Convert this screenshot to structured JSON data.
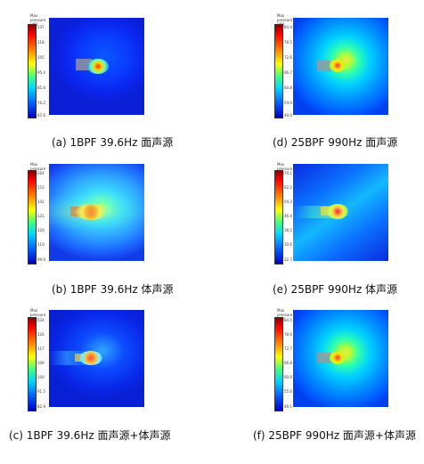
{
  "colorbar_title": "Max\npressure\n(dB)",
  "panels": {
    "a": {
      "caption": "(a) 1BPF 39.6Hz 面声源",
      "ticks": [
        "137",
        "118",
        "105",
        "95.4",
        "85.8",
        "76.2",
        "67.6"
      ]
    },
    "b": {
      "caption": "(b) 1BPF 39.6Hz 体声源",
      "ticks": [
        "164",
        "153",
        "142",
        "131",
        "120",
        "110",
        "99.0"
      ]
    },
    "c": {
      "caption": "(c) 1BPF 39.6Hz 面声源+体声源",
      "ticks": [
        "134",
        "126",
        "117",
        "109",
        "100",
        "91.5",
        "82.9"
      ]
    },
    "d": {
      "caption": "(d) 25BPF 990Hz 面声源",
      "ticks": [
        "84.4",
        "78.5",
        "72.6",
        "66.7",
        "60.8",
        "54.9",
        "49.0"
      ]
    },
    "e": {
      "caption": "(e) 25BPF 990Hz 体声源",
      "ticks": [
        "70.1",
        "62.2",
        "54.3",
        "46.4",
        "38.5",
        "30.6",
        "22.7"
      ]
    },
    "f": {
      "caption": "(f) 25BPF 990Hz 面声源+体声源",
      "ticks": [
        "84.5",
        "78.6",
        "72.7",
        "66.8",
        "60.9",
        "55.0",
        "49.1"
      ]
    }
  }
}
